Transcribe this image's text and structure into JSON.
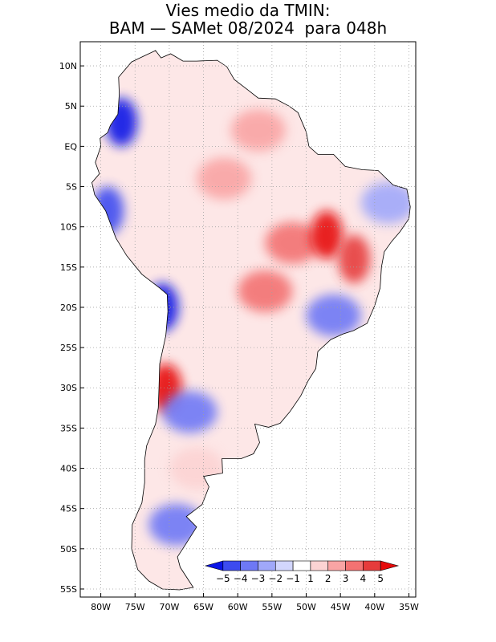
{
  "title": {
    "line1": "Vies medio da TMIN:",
    "line2": "BAM — SAMet 08/2024  para 048h"
  },
  "map": {
    "region": "South America",
    "lon_range": [
      -83,
      -34
    ],
    "lat_range": [
      -56,
      13
    ],
    "lat_labels": [
      "10N",
      "5N",
      "EQ",
      "5S",
      "10S",
      "15S",
      "20S",
      "25S",
      "30S",
      "35S",
      "40S",
      "45S",
      "50S",
      "55S"
    ],
    "lat_values": [
      10,
      5,
      0,
      -5,
      -10,
      -15,
      -20,
      -25,
      -30,
      -35,
      -40,
      -45,
      -50,
      -55
    ],
    "lon_labels": [
      "80W",
      "75W",
      "70W",
      "65W",
      "60W",
      "55W",
      "50W",
      "45W",
      "40W",
      "35W"
    ],
    "lon_values": [
      -80,
      -75,
      -70,
      -65,
      -60,
      -55,
      -50,
      -45,
      -40,
      -35
    ],
    "bias_regions": [
      {
        "name": "amazon-warm",
        "lon": -62,
        "lat": -4,
        "category": 2
      },
      {
        "name": "guiana-warm",
        "lon": -57,
        "lat": 2,
        "category": 2
      },
      {
        "name": "central-brazil-warm",
        "lon": -52,
        "lat": -12,
        "category": 3
      },
      {
        "name": "tocantins-warm",
        "lon": -47,
        "lat": -11,
        "category": 5
      },
      {
        "name": "bahia-warm",
        "lon": -43,
        "lat": -14,
        "category": 4
      },
      {
        "name": "pantanal-warm",
        "lon": -56,
        "lat": -18,
        "category": 3
      },
      {
        "name": "southeast-cool",
        "lon": -46,
        "lat": -21,
        "category": -3
      },
      {
        "name": "northeast-cool",
        "lon": -38,
        "lat": -7,
        "category": -2
      },
      {
        "name": "andes-north-cool",
        "lon": -77,
        "lat": 3,
        "category": -5
      },
      {
        "name": "peru-coast-cool",
        "lon": -79,
        "lat": -8,
        "category": -4
      },
      {
        "name": "chile-north-cool",
        "lon": -71,
        "lat": -20,
        "category": -5
      },
      {
        "name": "chile-central-warm",
        "lon": -70.5,
        "lat": -30,
        "category": 5
      },
      {
        "name": "cuyo-cool",
        "lon": -67,
        "lat": -33,
        "category": -3
      },
      {
        "name": "patagonia-cool",
        "lon": -69,
        "lat": -47,
        "category": -3
      },
      {
        "name": "patagonia-warm",
        "lon": -66,
        "lat": -40,
        "category": 1
      }
    ]
  },
  "legend": {
    "labels": [
      "−5",
      "−4",
      "−3",
      "−2",
      "−1",
      "1",
      "2",
      "3",
      "4",
      "5"
    ],
    "colors": [
      "#0a14e6",
      "#3c4bf0",
      "#6e78f5",
      "#a0a8fa",
      "#d2d6fd",
      "#ffffff",
      "#fcd3d3",
      "#f9a4a4",
      "#f37272",
      "#e63c3c",
      "#e60a0a"
    ]
  },
  "colors": {
    "land_neutral": "#ffffff",
    "ocean": "#ffffff",
    "grid": "#a0a0a0",
    "border": "#000000"
  }
}
